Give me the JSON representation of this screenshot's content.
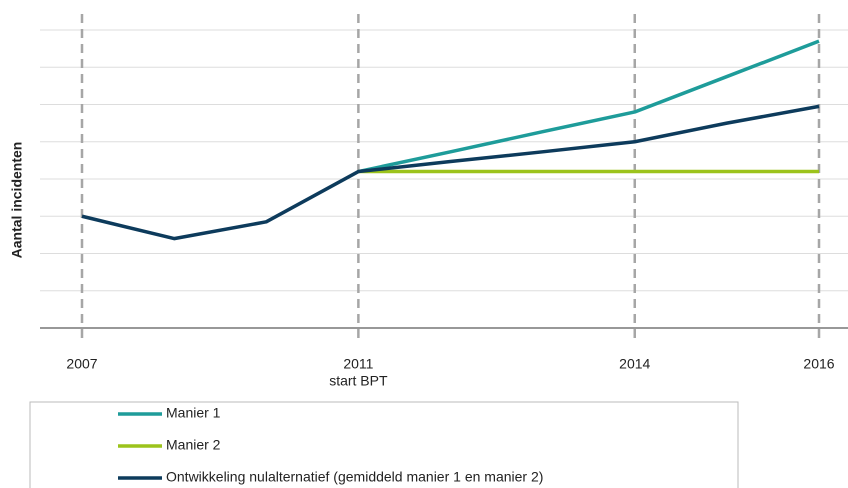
{
  "chart_data": {
    "type": "line",
    "y_label": "Aantal incidenten",
    "categories": [
      "2007",
      null,
      null,
      "2011",
      null,
      null,
      "2014",
      null,
      "2016"
    ],
    "annotation": "start BPT",
    "ylim": [
      0,
      8
    ],
    "yticks": [
      0,
      1,
      2,
      3,
      4,
      5,
      6,
      7,
      8
    ],
    "grid": true,
    "series": [
      {
        "name": "Manier 1",
        "color": "#1e9c9a",
        "values": [
          null,
          null,
          null,
          4.2,
          4.73,
          5.27,
          5.8,
          6.75,
          7.7
        ]
      },
      {
        "name": "Manier 2",
        "color": "#9cc31c",
        "values": [
          null,
          null,
          null,
          4.2,
          4.2,
          4.2,
          4.2,
          4.2,
          4.2
        ]
      },
      {
        "name": "Ontwikkeling nulalternatief (gemiddeld manier 1 en manier 2)",
        "color": "#0d3b5c",
        "values": [
          3.0,
          2.4,
          2.85,
          4.2,
          4.47,
          4.73,
          5.0,
          5.5,
          5.95
        ]
      }
    ]
  }
}
